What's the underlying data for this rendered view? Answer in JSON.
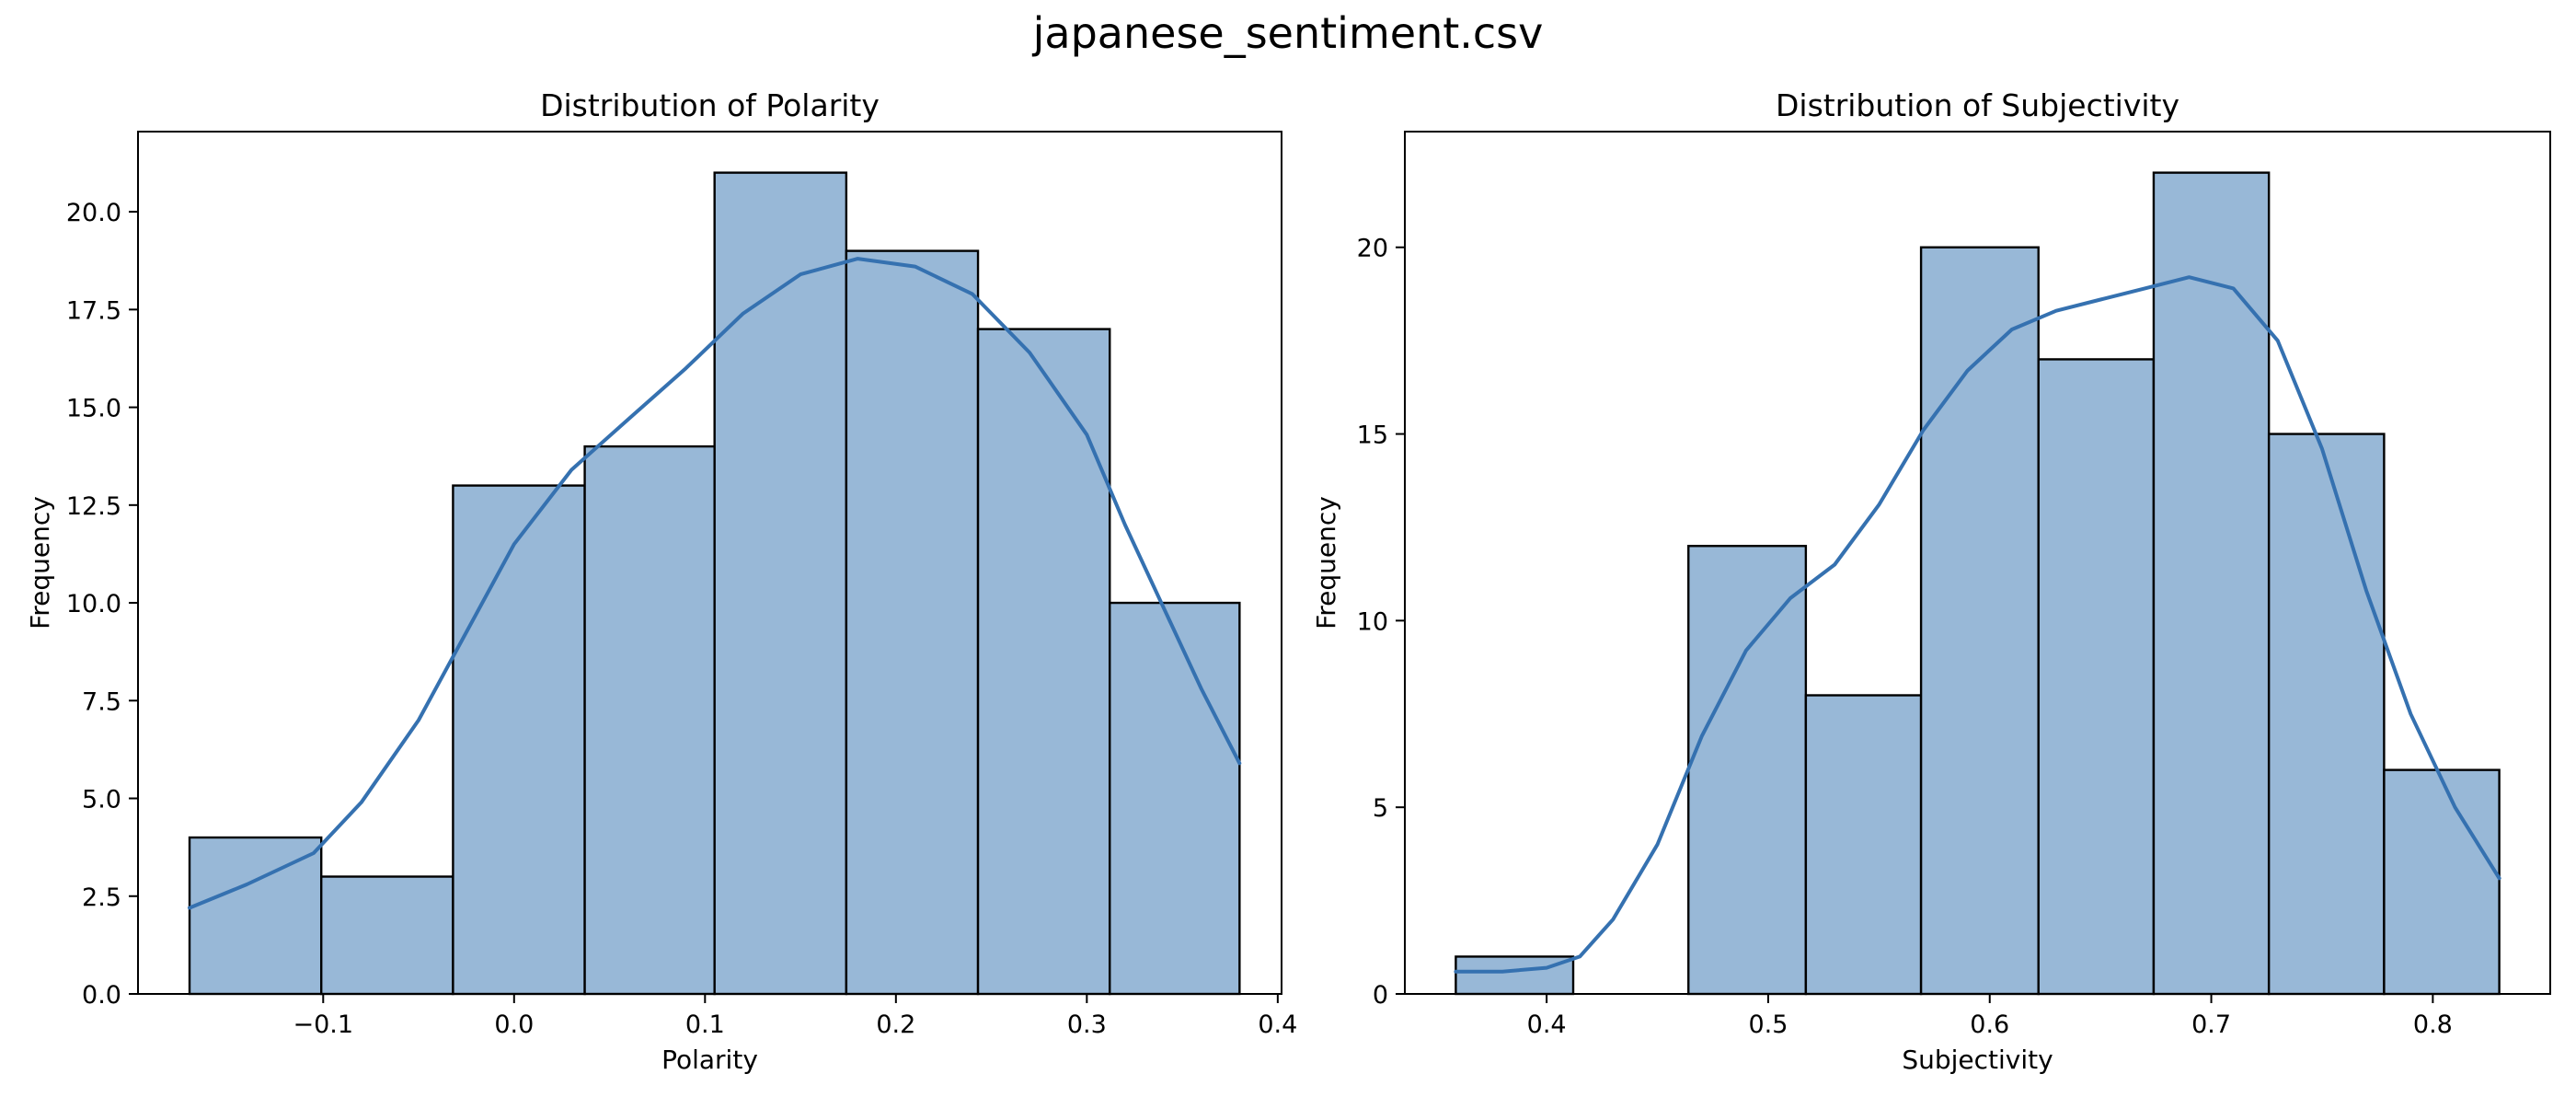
{
  "figure": {
    "suptitle": "japanese_sentiment.csv",
    "bar_color": "#98b8d7",
    "edge_color": "#000000",
    "kde_color": "#3571b0"
  },
  "chart_data": [
    {
      "type": "histogram",
      "title": "Distribution of Polarity",
      "xlabel": "Polarity",
      "ylabel": "Frequency",
      "xlim": [
        -0.197,
        0.402
      ],
      "ylim": [
        0,
        22.05
      ],
      "xticks": [
        -0.1,
        0.0,
        0.1,
        0.2,
        0.3,
        0.4
      ],
      "xtick_labels": [
        "−0.1",
        "0.0",
        "0.1",
        "0.2",
        "0.3",
        "0.4"
      ],
      "yticks": [
        0,
        2.5,
        5,
        7.5,
        10,
        12.5,
        15,
        17.5,
        20
      ],
      "ytick_labels": [
        "0.0",
        "2.5",
        "5.0",
        "7.5",
        "10.0",
        "12.5",
        "15.0",
        "17.5",
        "20.0"
      ],
      "bin_edges": [
        -0.17,
        -0.101,
        -0.032,
        0.037,
        0.105,
        0.174,
        0.243,
        0.312,
        0.38
      ],
      "counts": [
        4,
        3,
        13,
        14,
        21,
        19,
        17,
        10
      ],
      "kde": [
        [
          -0.17,
          2.2
        ],
        [
          -0.14,
          2.8
        ],
        [
          -0.105,
          3.6
        ],
        [
          -0.08,
          4.9
        ],
        [
          -0.05,
          7.0
        ],
        [
          -0.02,
          9.7
        ],
        [
          0.0,
          11.5
        ],
        [
          0.03,
          13.4
        ],
        [
          0.06,
          14.7
        ],
        [
          0.09,
          16.0
        ],
        [
          0.12,
          17.4
        ],
        [
          0.15,
          18.4
        ],
        [
          0.18,
          18.8
        ],
        [
          0.21,
          18.6
        ],
        [
          0.24,
          17.9
        ],
        [
          0.27,
          16.4
        ],
        [
          0.3,
          14.3
        ],
        [
          0.32,
          12.0
        ],
        [
          0.34,
          9.9
        ],
        [
          0.36,
          7.8
        ],
        [
          0.38,
          5.9
        ]
      ]
    },
    {
      "type": "histogram",
      "title": "Distribution of Subjectivity",
      "xlabel": "Subjectivity",
      "ylabel": "Frequency",
      "xlim": [
        0.336,
        0.853
      ],
      "ylim": [
        0,
        23.1
      ],
      "xticks": [
        0.4,
        0.5,
        0.6,
        0.7,
        0.8
      ],
      "xtick_labels": [
        "0.4",
        "0.5",
        "0.6",
        "0.7",
        "0.8"
      ],
      "yticks": [
        0,
        5,
        10,
        15,
        20
      ],
      "ytick_labels": [
        "0",
        "5",
        "10",
        "15",
        "20"
      ],
      "bin_edges": [
        0.359,
        0.412,
        0.464,
        0.517,
        0.569,
        0.622,
        0.674,
        0.726,
        0.778,
        0.83
      ],
      "counts": [
        1,
        0,
        12,
        8,
        20,
        17,
        22,
        15,
        6
      ],
      "kde": [
        [
          0.359,
          0.6
        ],
        [
          0.38,
          0.6
        ],
        [
          0.4,
          0.7
        ],
        [
          0.415,
          1.0
        ],
        [
          0.43,
          2.0
        ],
        [
          0.45,
          4.0
        ],
        [
          0.47,
          6.9
        ],
        [
          0.49,
          9.2
        ],
        [
          0.51,
          10.6
        ],
        [
          0.53,
          11.5
        ],
        [
          0.55,
          13.1
        ],
        [
          0.57,
          15.1
        ],
        [
          0.59,
          16.7
        ],
        [
          0.61,
          17.8
        ],
        [
          0.63,
          18.3
        ],
        [
          0.65,
          18.6
        ],
        [
          0.67,
          18.9
        ],
        [
          0.69,
          19.2
        ],
        [
          0.71,
          18.9
        ],
        [
          0.73,
          17.5
        ],
        [
          0.75,
          14.6
        ],
        [
          0.77,
          10.8
        ],
        [
          0.79,
          7.5
        ],
        [
          0.81,
          5.0
        ],
        [
          0.83,
          3.1
        ]
      ]
    }
  ]
}
